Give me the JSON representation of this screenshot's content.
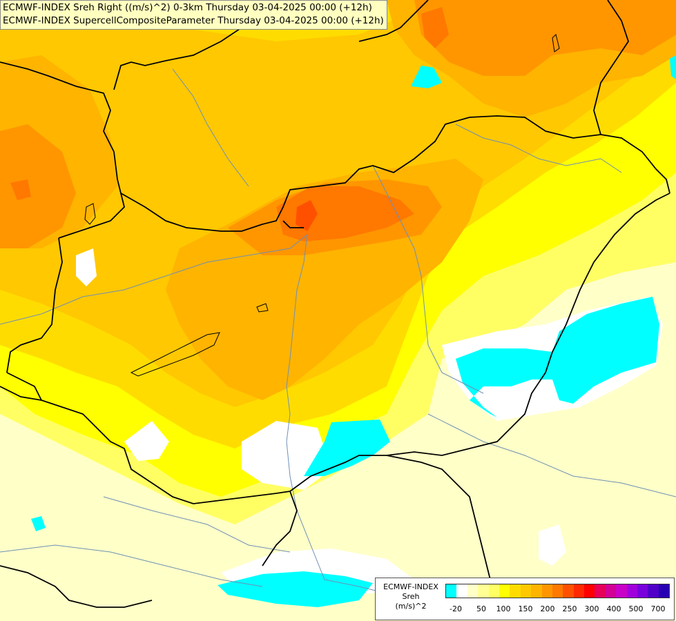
{
  "titles": [
    "ECMWF-INDEX Sreh Right ((m/s)^2) 0-3km Thursday 03-04-2025 00:00 (+12h)",
    "ECMWF-INDEX SupercellCompositeParameter Thursday 03-04-2025 00:00 (+12h)"
  ],
  "legend": {
    "caption_line1": "ECMWF-INDEX",
    "caption_line2": "Sreh",
    "caption_line3": "(m/s)^2",
    "colors": [
      "#00ffff",
      "#ffffff",
      "#ffffc8",
      "#ffff96",
      "#ffff64",
      "#ffff00",
      "#ffdc00",
      "#ffc800",
      "#ffb400",
      "#ff9600",
      "#ff7800",
      "#ff5000",
      "#ff2800",
      "#ff0000",
      "#e6005a",
      "#d20096",
      "#c800c8",
      "#a000dc",
      "#7800dc",
      "#5000c8",
      "#2800b4"
    ],
    "ticks": [
      "-20",
      "50",
      "100",
      "150",
      "200",
      "250",
      "300",
      "400",
      "500",
      "700"
    ]
  }
}
